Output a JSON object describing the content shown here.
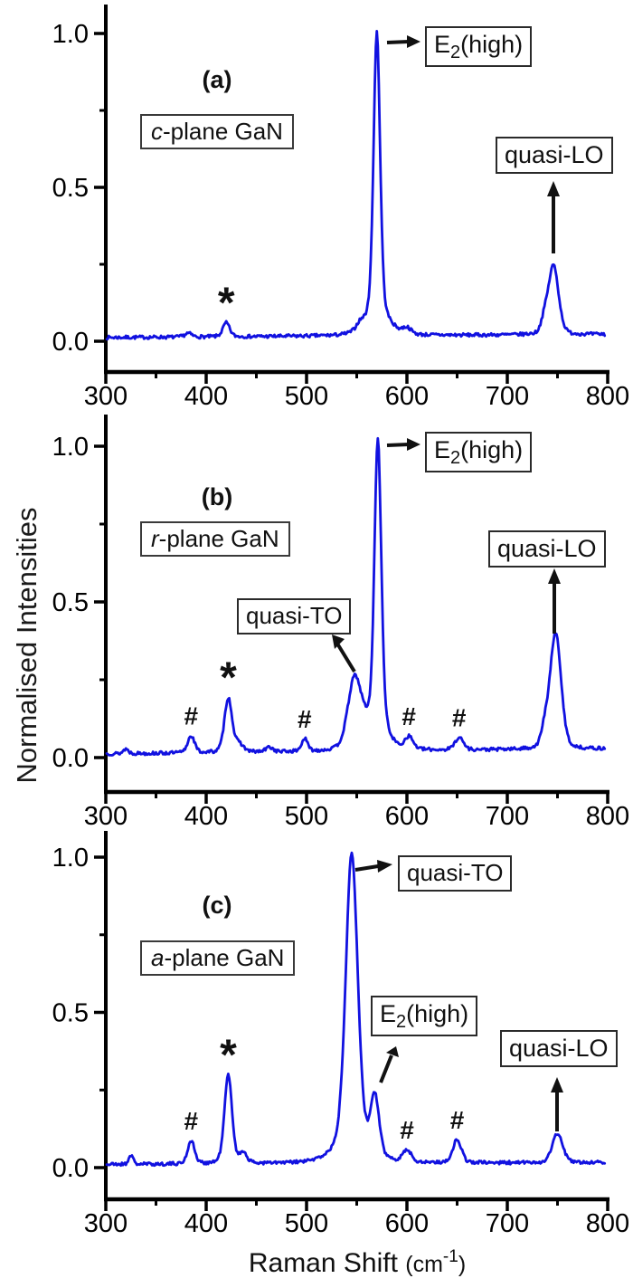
{
  "figure": {
    "y_axis_title": "Normalised Intensities",
    "x_axis_title": {
      "main": "Raman Shift ",
      "unit_open": "(cm",
      "unit_sup": "-1",
      "unit_close": ")"
    },
    "curve_color": "#1111e0",
    "x_tick_labels": [
      "300",
      "400",
      "500",
      "600",
      "700",
      "800"
    ],
    "y_tick_labels": [
      "0.0",
      "0.5",
      "1.0"
    ]
  },
  "chart_data": [
    {
      "type": "line",
      "panel_id": "a",
      "title": "c-plane GaN Raman spectrum",
      "xlabel": "Raman Shift (cm-1)",
      "ylabel": "Normalised Intensities",
      "xlim": [
        300,
        800
      ],
      "ylim": [
        -0.1,
        1.1
      ],
      "x_ticks": [
        300,
        400,
        500,
        600,
        700,
        800
      ],
      "y_ticks": [
        0.0,
        0.5,
        1.0
      ],
      "baseline": 0.012,
      "baseline_end": 0.022,
      "seed": 7,
      "peaks": [
        {
          "center": 382,
          "height": 0.012,
          "width": 4
        },
        {
          "center": 420,
          "height": 0.045,
          "width": 4,
          "marker": "*"
        },
        {
          "center": 553,
          "height": 0.015,
          "width": 4
        },
        {
          "center": 570,
          "height": 0.92,
          "width": 3.8,
          "label": "E2(high)"
        },
        {
          "center": 570,
          "height": 0.07,
          "width": 14
        },
        {
          "center": 600,
          "height": 0.02,
          "width": 5
        },
        {
          "center": 737,
          "height": 0.04,
          "width": 4
        },
        {
          "center": 746,
          "height": 0.225,
          "width": 6,
          "label": "quasi-LO"
        }
      ],
      "labels": {
        "tag": "(a)",
        "sample": {
          "em": "c",
          "rest": "-plane GaN"
        },
        "e2": {
          "base": "E",
          "sub": "2",
          "rest": "(high)"
        },
        "quasi_lo": "quasi-LO"
      }
    },
    {
      "type": "line",
      "panel_id": "b",
      "title": "r-plane GaN Raman spectrum",
      "xlabel": "Raman Shift (cm-1)",
      "ylabel": "Normalised Intensities",
      "xlim": [
        300,
        800
      ],
      "ylim": [
        -0.1,
        1.1
      ],
      "x_ticks": [
        300,
        400,
        500,
        600,
        700,
        800
      ],
      "y_ticks": [
        0.0,
        0.5,
        1.0
      ],
      "baseline": 0.012,
      "baseline_end": 0.028,
      "seed": 13,
      "peaks": [
        {
          "center": 320,
          "height": 0.015,
          "width": 3
        },
        {
          "center": 385,
          "height": 0.055,
          "width": 4,
          "marker": "#"
        },
        {
          "center": 422,
          "height": 0.175,
          "width": 4.5,
          "marker": "*"
        },
        {
          "center": 433,
          "height": 0.025,
          "width": 5
        },
        {
          "center": 463,
          "height": 0.015,
          "width": 4
        },
        {
          "center": 498,
          "height": 0.04,
          "width": 3.5,
          "marker": "#"
        },
        {
          "center": 548,
          "height": 0.23,
          "width": 8,
          "label": "quasi-TO"
        },
        {
          "center": 559,
          "height": 0.02,
          "width": 5
        },
        {
          "center": 571,
          "height": 0.92,
          "width": 4,
          "label": "E2(high)"
        },
        {
          "center": 571,
          "height": 0.08,
          "width": 11
        },
        {
          "center": 602,
          "height": 0.04,
          "width": 5,
          "marker": "#"
        },
        {
          "center": 652,
          "height": 0.04,
          "width": 5,
          "marker": "#"
        },
        {
          "center": 737,
          "height": 0.05,
          "width": 4
        },
        {
          "center": 748,
          "height": 0.375,
          "width": 6.5,
          "label": "quasi-LO"
        }
      ],
      "labels": {
        "tag": "(b)",
        "sample": {
          "em": "r",
          "rest": "-plane GaN"
        },
        "e2": {
          "base": "E",
          "sub": "2",
          "rest": "(high)"
        },
        "quasi_to": "quasi-TO",
        "quasi_lo": "quasi-LO"
      }
    },
    {
      "type": "line",
      "panel_id": "c",
      "title": "a-plane GaN Raman spectrum",
      "xlabel": "Raman Shift (cm-1)",
      "ylabel": "Normalised Intensities",
      "xlim": [
        300,
        800
      ],
      "ylim": [
        -0.1,
        1.1
      ],
      "x_ticks": [
        300,
        400,
        500,
        600,
        700,
        800
      ],
      "y_ticks": [
        0.0,
        0.5,
        1.0
      ],
      "baseline": 0.01,
      "baseline_end": 0.016,
      "seed": 21,
      "peaks": [
        {
          "center": 325,
          "height": 0.03,
          "width": 2.5
        },
        {
          "center": 385,
          "height": 0.075,
          "width": 4,
          "marker": "#"
        },
        {
          "center": 422,
          "height": 0.285,
          "width": 4.5,
          "marker": "*"
        },
        {
          "center": 437,
          "height": 0.035,
          "width": 4
        },
        {
          "center": 545,
          "height": 0.95,
          "width": 7,
          "label": "quasi-TO"
        },
        {
          "center": 545,
          "height": 0.05,
          "width": 20
        },
        {
          "center": 568,
          "height": 0.19,
          "width": 5,
          "label": "E2(high)"
        },
        {
          "center": 600,
          "height": 0.038,
          "width": 5,
          "marker": "#"
        },
        {
          "center": 650,
          "height": 0.075,
          "width": 5,
          "marker": "#"
        },
        {
          "center": 750,
          "height": 0.095,
          "width": 6,
          "label": "quasi-LO"
        }
      ],
      "labels": {
        "tag": "(c)",
        "sample": {
          "em": "a",
          "rest": "-plane GaN"
        },
        "e2": {
          "base": "E",
          "sub": "2",
          "rest": "(high)"
        },
        "quasi_to": "quasi-TO",
        "quasi_lo": "quasi-LO"
      }
    }
  ]
}
